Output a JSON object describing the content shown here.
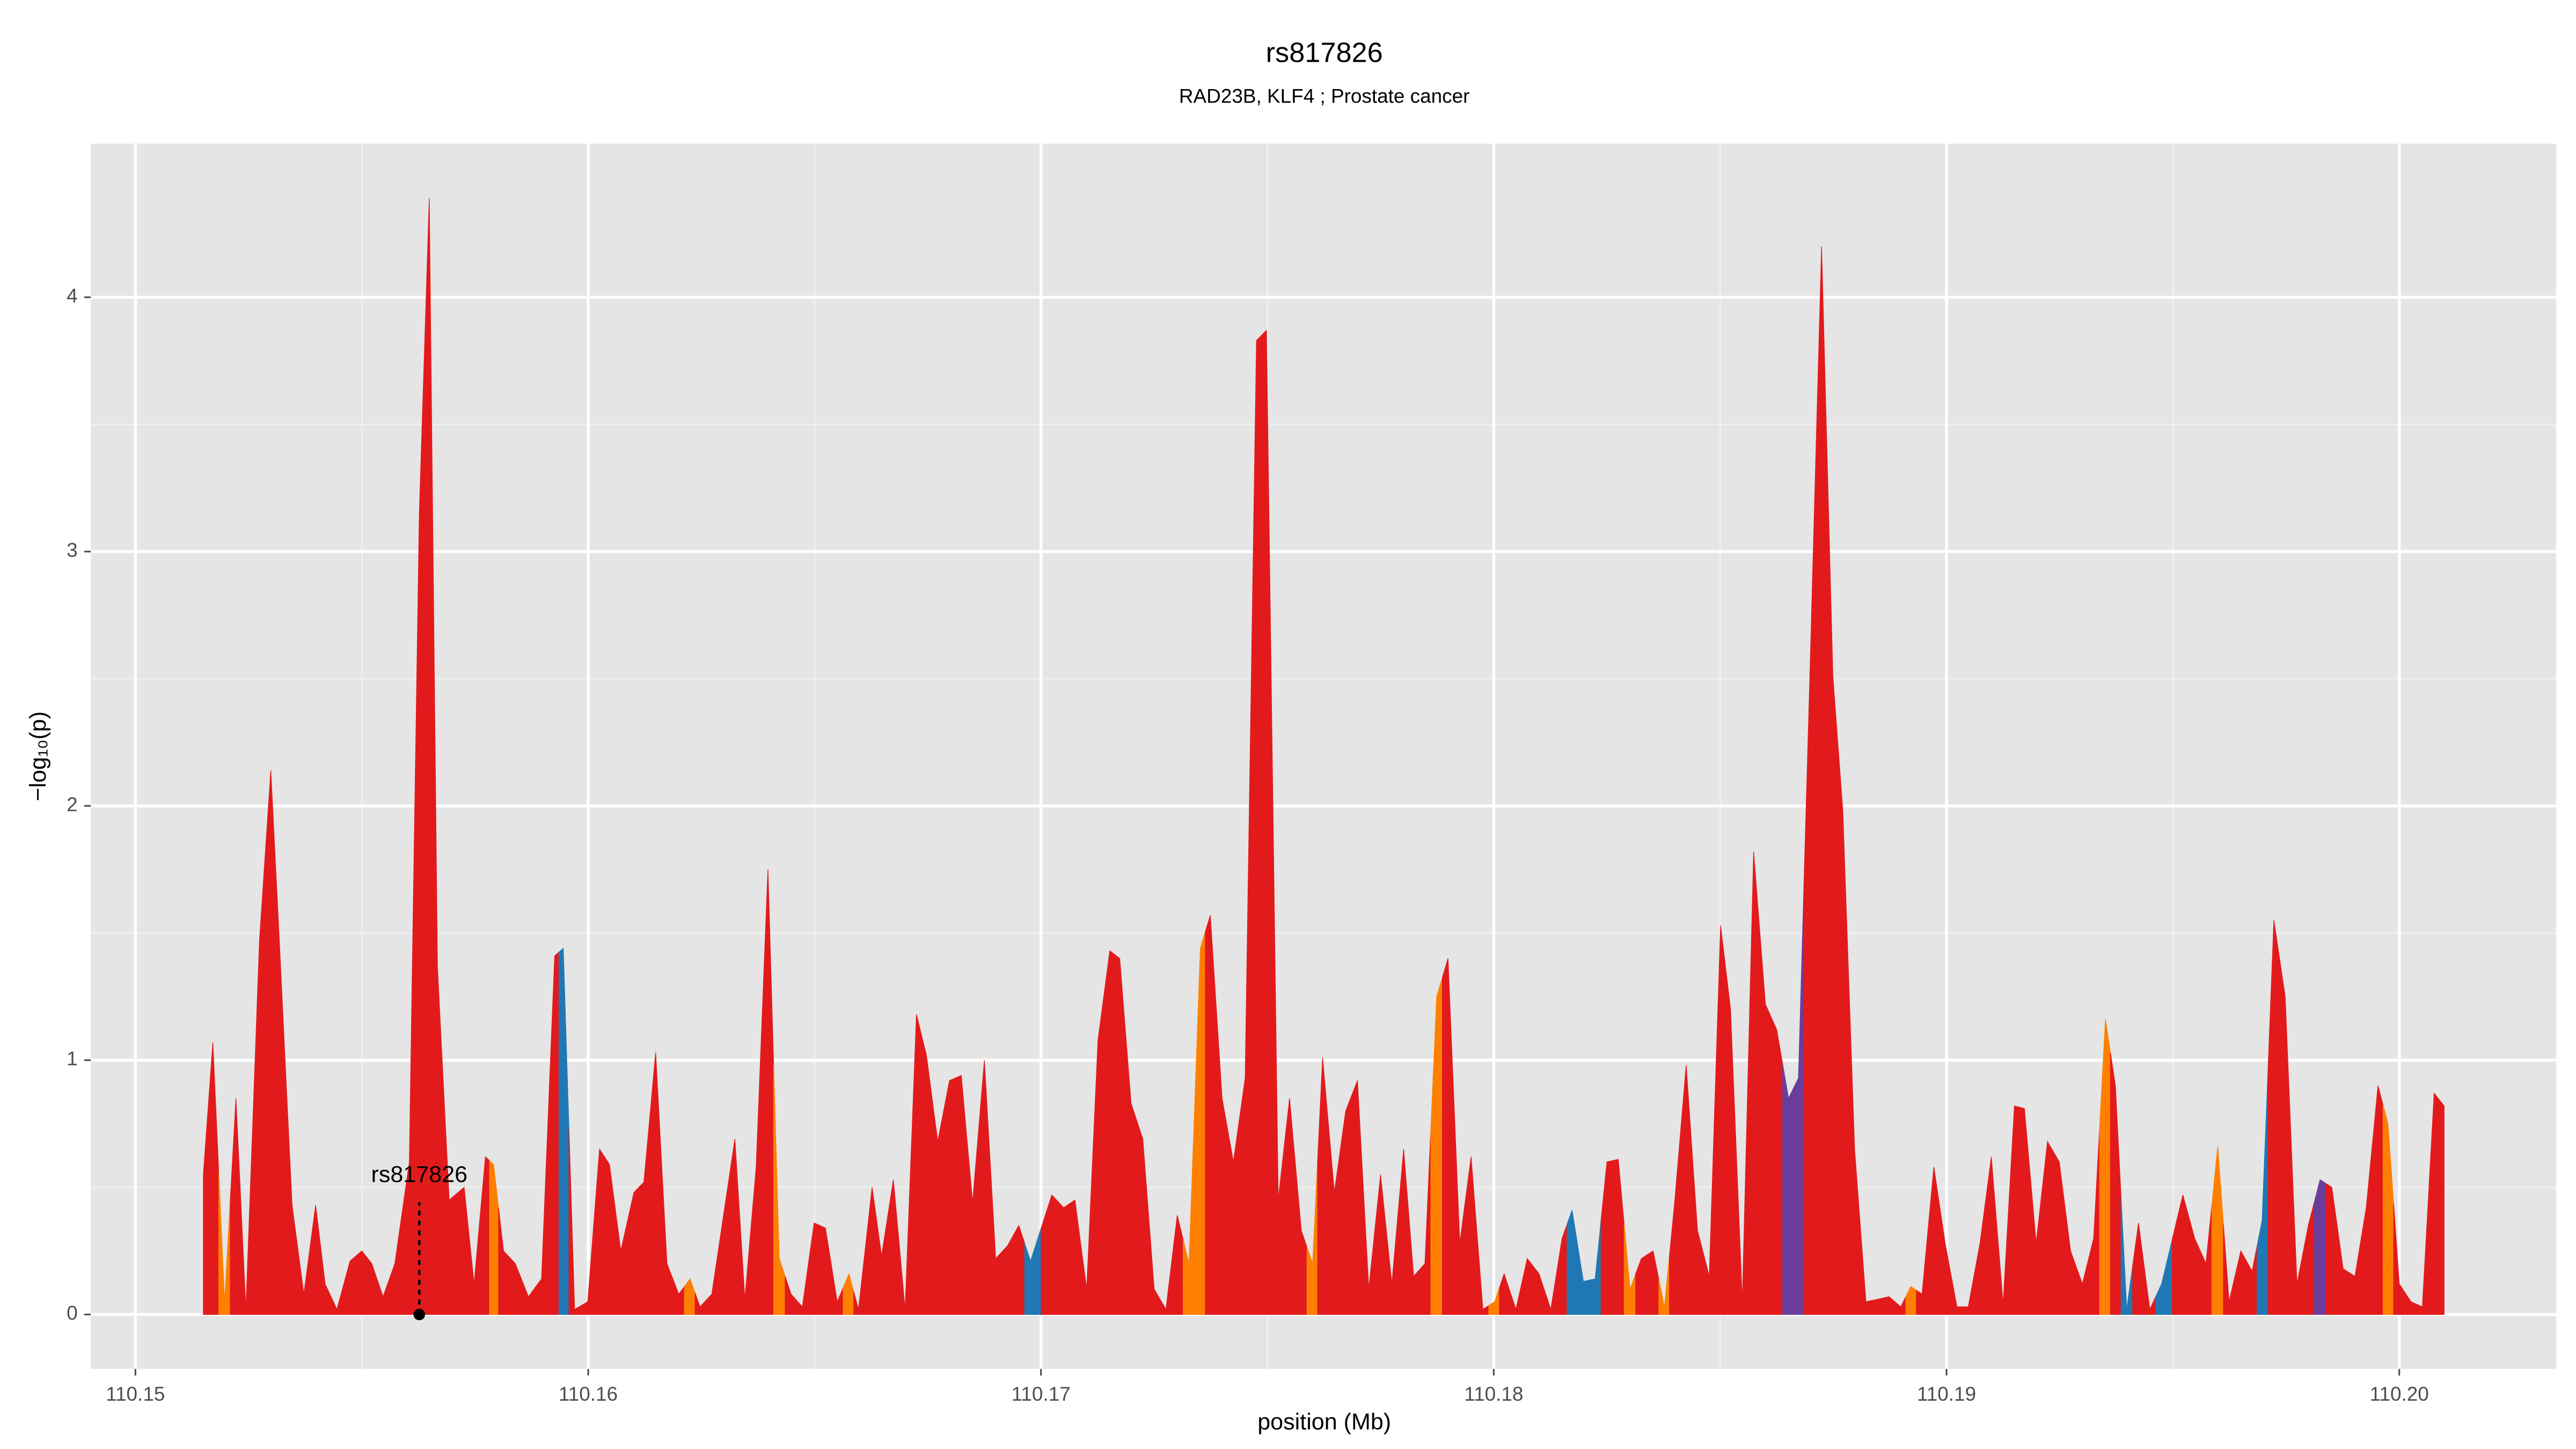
{
  "chart_data": {
    "type": "area",
    "title": "rs817826",
    "subtitle": "RAD23B, KLF4 ; Prostate cancer",
    "x_label": "position (Mb)",
    "y_label": "−log₁₀(p)",
    "xlim": [
      110.149015,
      110.203465
    ],
    "ylim": [
      -0.214,
      4.604
    ],
    "xticks": [
      110.15,
      110.16,
      110.17,
      110.18,
      110.19,
      {
        "value": 110.2,
        "label": "110.20"
      }
    ],
    "yticks": [
      0,
      1,
      2,
      3,
      4
    ],
    "grid": true,
    "annotation": {
      "text": "rs817826",
      "x": 110.15627
    },
    "x": [
      110.1515,
      110.15171,
      110.15197,
      110.15222,
      110.15244,
      110.15274,
      110.15299,
      110.15317,
      110.15346,
      110.15372,
      110.15398,
      110.15419,
      110.15445,
      110.15474,
      110.155,
      110.15522,
      110.15547,
      110.15573,
      110.15605,
      110.15627,
      110.15649,
      110.15667,
      110.15693,
      110.15726,
      110.15748,
      110.15773,
      110.15791,
      110.15813,
      110.15839,
      110.15868,
      110.15897,
      110.15926,
      110.15945,
      110.1597,
      110.15999,
      110.16025,
      110.16047,
      110.16072,
      110.16101,
      110.16123,
      110.16149,
      110.16174,
      110.162,
      110.16225,
      110.16247,
      110.16273,
      110.16324,
      110.16346,
      110.16371,
      110.16397,
      110.16422,
      110.16448,
      110.16473,
      110.16499,
      110.16524,
      110.1655,
      110.16576,
      110.16597,
      110.16627,
      110.16648,
      110.16674,
      110.167,
      110.16725,
      110.16747,
      110.16772,
      110.16798,
      110.16824,
      110.16849,
      110.16875,
      110.169,
      110.16926,
      110.16951,
      110.16977,
      110.17024,
      110.1705,
      110.17075,
      110.17101,
      110.17126,
      110.17152,
      110.17174,
      110.17199,
      110.17225,
      110.1725,
      110.17276,
      110.17301,
      110.17327,
      110.17352,
      110.17374,
      110.174,
      110.17425,
      110.17451,
      110.17476,
      110.17498,
      110.17524,
      110.17549,
      110.17575,
      110.176,
      110.17622,
      110.17648,
      110.17673,
      110.17699,
      110.17724,
      110.1775,
      110.17775,
      110.17801,
      110.17823,
      110.17848,
      110.17874,
      110.17899,
      110.17925,
      110.1795,
      110.17976,
      110.18002,
      110.18023,
      110.18049,
      110.18074,
      110.181,
      110.18126,
      110.18151,
      110.18173,
      110.18198,
      110.18224,
      110.1825,
      110.18275,
      110.18301,
      110.18326,
      110.18352,
      110.18377,
      110.18399,
      110.18425,
      110.1845,
      110.18476,
      110.18501,
      110.18523,
      110.18549,
      110.18574,
      110.186,
      110.18625,
      110.18651,
      110.18673,
      110.18698,
      110.18724,
      110.18749,
      110.18771,
      110.18797,
      110.18822,
      110.18848,
      110.18873,
      110.18899,
      110.18921,
      110.18946,
      110.18972,
      110.18997,
      110.19023,
      110.19048,
      110.19074,
      110.19099,
      110.19125,
      110.1915,
      110.19172,
      110.19198,
      110.19223,
      110.19249,
      110.19274,
      110.193,
      110.19325,
      110.19351,
      110.19373,
      110.19398,
      110.19424,
      110.19449,
      110.19475,
      110.19522,
      110.19548,
      110.19573,
      110.19599,
      110.19624,
      110.1965,
      110.19675,
      110.19697,
      110.19723,
      110.19748,
      110.19774,
      110.19799,
      110.19825,
      110.19851,
      110.19876,
      110.19902,
      110.19927,
      110.19953,
      110.19975,
      110.2,
      110.20026,
      110.20051,
      110.20077,
      110.20099
    ],
    "values": [
      0.55,
      1.07,
      0.05,
      0.85,
      0.02,
      1.47,
      2.14,
      1.5,
      0.43,
      0.08,
      0.43,
      0.12,
      0.02,
      0.21,
      0.25,
      0.2,
      0.07,
      0.2,
      0.6,
      3.15,
      4.39,
      1.37,
      0.45,
      0.5,
      0.12,
      0.62,
      0.59,
      0.25,
      0.2,
      0.07,
      0.14,
      1.41,
      1.44,
      0.02,
      0.05,
      0.65,
      0.59,
      0.25,
      0.48,
      0.52,
      1.03,
      0.2,
      0.08,
      0.14,
      0.03,
      0.08,
      0.69,
      0.06,
      0.58,
      1.75,
      0.22,
      0.08,
      0.03,
      0.36,
      0.34,
      0.05,
      0.16,
      0.02,
      0.5,
      0.23,
      0.53,
      0.02,
      1.18,
      1.02,
      0.68,
      0.92,
      0.94,
      0.44,
      1.0,
      0.22,
      0.27,
      0.35,
      0.21,
      0.47,
      0.42,
      0.45,
      0.1,
      1.08,
      1.43,
      1.4,
      0.83,
      0.69,
      0.1,
      0.02,
      0.39,
      0.2,
      1.44,
      1.57,
      0.85,
      0.6,
      0.93,
      3.83,
      3.87,
      0.45,
      0.85,
      0.33,
      0.2,
      1.01,
      0.48,
      0.8,
      0.92,
      0.1,
      0.55,
      0.12,
      0.65,
      0.15,
      0.2,
      1.25,
      1.4,
      0.28,
      0.62,
      0.02,
      0.05,
      0.16,
      0.02,
      0.22,
      0.16,
      0.02,
      0.3,
      0.41,
      0.13,
      0.14,
      0.6,
      0.61,
      0.1,
      0.22,
      0.25,
      0.03,
      0.43,
      0.98,
      0.33,
      0.15,
      1.53,
      1.2,
      0.05,
      1.82,
      1.22,
      1.12,
      0.85,
      0.93,
      2.5,
      4.2,
      2.51,
      1.98,
      0.65,
      0.05,
      0.06,
      0.07,
      0.03,
      0.11,
      0.08,
      0.58,
      0.28,
      0.03,
      0.03,
      0.28,
      0.62,
      0.04,
      0.82,
      0.81,
      0.28,
      0.68,
      0.6,
      0.25,
      0.12,
      0.3,
      1.16,
      0.9,
      0.02,
      0.36,
      0.02,
      0.12,
      0.47,
      0.3,
      0.2,
      0.66,
      0.05,
      0.25,
      0.17,
      0.37,
      1.55,
      1.25,
      0.12,
      0.35,
      0.53,
      0.5,
      0.18,
      0.15,
      0.42,
      0.9,
      0.75,
      0.12,
      0.05,
      0.03,
      0.87,
      0.82
    ],
    "colors": [
      "#e31a1c",
      "#e31a1c",
      "#ff7f00",
      "#e31a1c",
      "#e31a1c",
      "#e31a1c",
      "#e31a1c",
      "#e31a1c",
      "#e31a1c",
      "#e31a1c",
      "#e31a1c",
      "#e31a1c",
      "#e31a1c",
      "#e31a1c",
      "#e31a1c",
      "#e31a1c",
      "#e31a1c",
      "#e31a1c",
      "#e31a1c",
      "#e31a1c",
      "#e31a1c",
      "#e31a1c",
      "#e31a1c",
      "#e31a1c",
      "#e31a1c",
      "#e31a1c",
      "#ff7f00",
      "#e31a1c",
      "#e31a1c",
      "#e31a1c",
      "#e31a1c",
      "#e31a1c",
      "#1f78b4",
      "#e31a1c",
      "#e31a1c",
      "#e31a1c",
      "#e31a1c",
      "#e31a1c",
      "#e31a1c",
      "#e31a1c",
      "#e31a1c",
      "#e31a1c",
      "#e31a1c",
      "#ff7f00",
      "#e31a1c",
      "#e31a1c",
      "#e31a1c",
      "#e31a1c",
      "#e31a1c",
      "#e31a1c",
      "#ff7f00",
      "#e31a1c",
      "#e31a1c",
      "#e31a1c",
      "#e31a1c",
      "#e31a1c",
      "#ff7f00",
      "#e31a1c",
      "#e31a1c",
      "#e31a1c",
      "#e31a1c",
      "#e31a1c",
      "#e31a1c",
      "#e31a1c",
      "#e31a1c",
      "#e31a1c",
      "#e31a1c",
      "#e31a1c",
      "#e31a1c",
      "#e31a1c",
      "#e31a1c",
      "#e31a1c",
      "#1f78b4",
      "#e31a1c",
      "#e31a1c",
      "#e31a1c",
      "#e31a1c",
      "#e31a1c",
      "#e31a1c",
      "#e31a1c",
      "#e31a1c",
      "#e31a1c",
      "#e31a1c",
      "#e31a1c",
      "#e31a1c",
      "#ff7f00",
      "#ff7f00",
      "#e31a1c",
      "#e31a1c",
      "#e31a1c",
      "#e31a1c",
      "#e31a1c",
      "#e31a1c",
      "#e31a1c",
      "#e31a1c",
      "#e31a1c",
      "#ff7f00",
      "#e31a1c",
      "#e31a1c",
      "#e31a1c",
      "#e31a1c",
      "#e31a1c",
      "#e31a1c",
      "#e31a1c",
      "#e31a1c",
      "#e31a1c",
      "#e31a1c",
      "#ff7f00",
      "#e31a1c",
      "#e31a1c",
      "#e31a1c",
      "#e31a1c",
      "#ff7f00",
      "#e31a1c",
      "#e31a1c",
      "#e31a1c",
      "#e31a1c",
      "#e31a1c",
      "#e31a1c",
      "#1f78b4",
      "#1f78b4",
      "#1f78b4",
      "#e31a1c",
      "#e31a1c",
      "#ff7f00",
      "#e31a1c",
      "#e31a1c",
      "#ff7f00",
      "#e31a1c",
      "#e31a1c",
      "#e31a1c",
      "#e31a1c",
      "#e31a1c",
      "#e31a1c",
      "#e31a1c",
      "#e31a1c",
      "#e31a1c",
      "#e31a1c",
      "#6a3d9a",
      "#6a3d9a",
      "#e31a1c",
      "#e31a1c",
      "#e31a1c",
      "#e31a1c",
      "#e31a1c",
      "#e31a1c",
      "#e31a1c",
      "#e31a1c",
      "#e31a1c",
      "#ff7f00",
      "#e31a1c",
      "#e31a1c",
      "#e31a1c",
      "#e31a1c",
      "#e31a1c",
      "#e31a1c",
      "#e31a1c",
      "#e31a1c",
      "#e31a1c",
      "#e31a1c",
      "#e31a1c",
      "#e31a1c",
      "#e31a1c",
      "#e31a1c",
      "#e31a1c",
      "#e31a1c",
      "#ff7f00",
      "#e31a1c",
      "#1f78b4",
      "#e31a1c",
      "#e31a1c",
      "#1f78b4",
      "#e31a1c",
      "#e31a1c",
      "#e31a1c",
      "#ff7f00",
      "#e31a1c",
      "#e31a1c",
      "#e31a1c",
      "#1f78b4",
      "#e31a1c",
      "#e31a1c",
      "#e31a1c",
      "#e31a1c",
      "#6a3d9a",
      "#e31a1c",
      "#e31a1c",
      "#e31a1c",
      "#e31a1c",
      "#e31a1c",
      "#ff7f00",
      "#e31a1c",
      "#e31a1c",
      "#e31a1c",
      "#e31a1c",
      "#e31a1c"
    ]
  }
}
